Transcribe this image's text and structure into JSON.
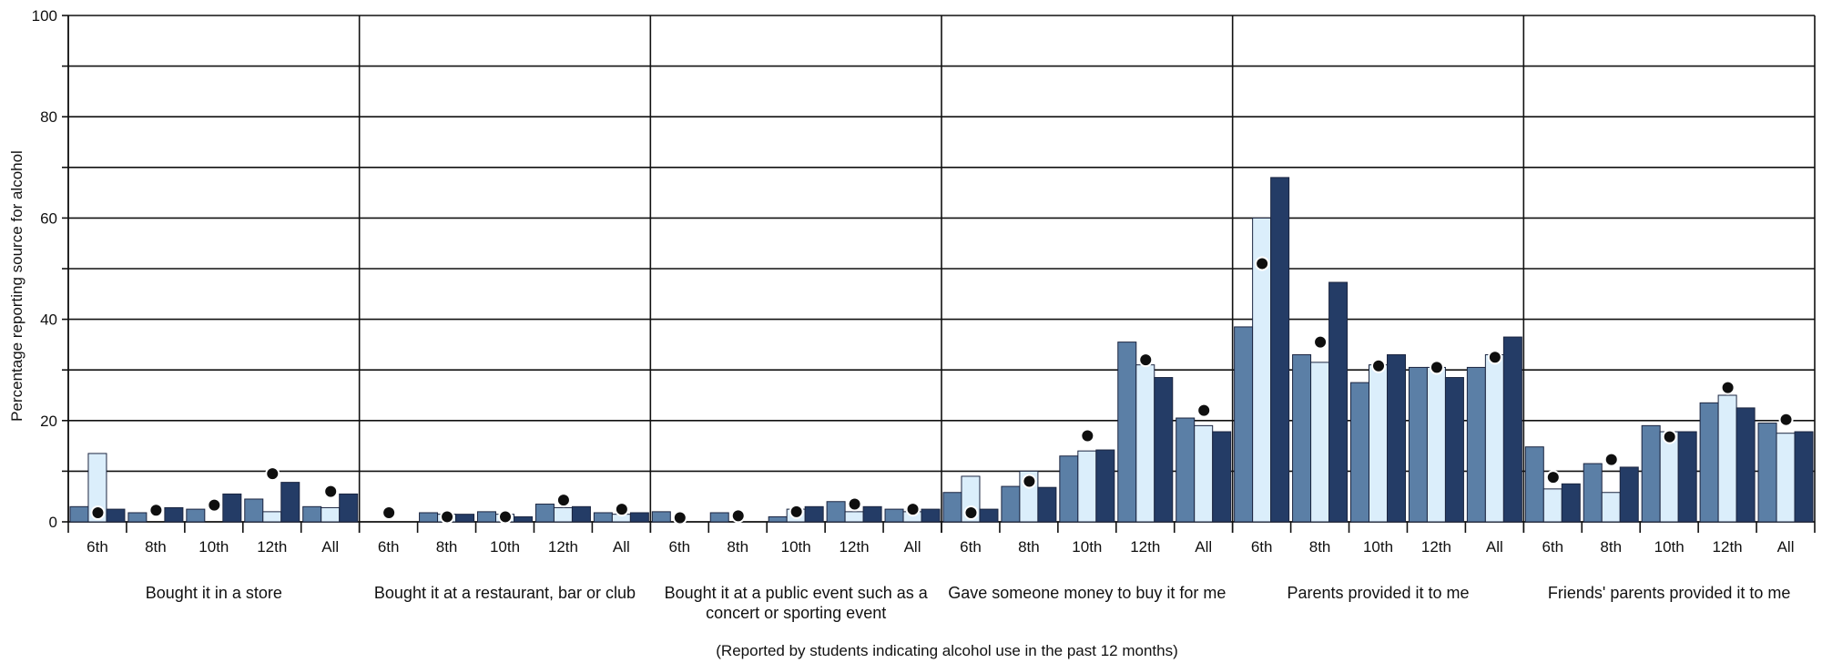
{
  "chart_data": {
    "type": "bar",
    "ylabel": "Percentage reporting source for alcohol",
    "xlabel": "(Reported by students indicating alcohol use in the past 12 months)",
    "ylim": [
      0,
      100
    ],
    "yticks": [
      0,
      20,
      40,
      60,
      80,
      100
    ],
    "grid": true,
    "categories": [
      "6th",
      "8th",
      "10th",
      "12th",
      "All"
    ],
    "colors": [
      "#5b7fa6",
      "#dbeefb",
      "#243c66"
    ],
    "groups": [
      {
        "label": "Bought it in a store",
        "bars": [
          [
            3.0,
            13.5,
            2.5
          ],
          [
            1.8,
            0.0,
            2.8
          ],
          [
            2.5,
            0.0,
            5.5
          ],
          [
            4.5,
            2.0,
            7.8
          ],
          [
            3.0,
            2.8,
            5.5
          ]
        ],
        "dots": [
          1.8,
          2.3,
          3.3,
          9.5,
          6.0
        ]
      },
      {
        "label": "Bought it at a restaurant, bar or club",
        "bars": [
          [
            0.0,
            0.0,
            0.0
          ],
          [
            1.8,
            1.5,
            1.5
          ],
          [
            2.0,
            1.5,
            1.0
          ],
          [
            3.5,
            2.8,
            3.0
          ],
          [
            1.8,
            1.5,
            1.8
          ]
        ],
        "dots": [
          1.8,
          1.0,
          1.0,
          4.3,
          2.5
        ]
      },
      {
        "label": "Bought it at a public event such as a concert or sporting event",
        "label_lines": [
          "Bought it at a public event such as a",
          "concert or sporting event"
        ],
        "bars": [
          [
            2.0,
            0.0,
            0.0
          ],
          [
            1.8,
            0.0,
            0.0
          ],
          [
            1.0,
            2.5,
            3.0
          ],
          [
            4.0,
            2.0,
            3.0
          ],
          [
            2.5,
            2.0,
            2.5
          ]
        ],
        "dots": [
          0.8,
          1.2,
          2.0,
          3.5,
          2.5
        ]
      },
      {
        "label": "Gave someone money to buy it for me",
        "bars": [
          [
            5.8,
            9.0,
            2.5
          ],
          [
            7.0,
            10.0,
            6.8
          ],
          [
            13.0,
            14.0,
            14.2
          ],
          [
            35.5,
            31.0,
            28.5
          ],
          [
            20.5,
            19.0,
            17.8
          ]
        ],
        "dots": [
          1.8,
          8.0,
          17.0,
          32.0,
          22.0
        ]
      },
      {
        "label": "Parents provided it to me",
        "bars": [
          [
            38.5,
            60.0,
            68.0
          ],
          [
            33.0,
            31.5,
            47.3
          ],
          [
            27.5,
            31.0,
            33.0
          ],
          [
            30.5,
            30.5,
            28.5
          ],
          [
            30.5,
            33.0,
            36.5
          ]
        ],
        "dots": [
          51.0,
          35.5,
          30.8,
          30.5,
          32.5
        ]
      },
      {
        "label": "Friends' parents provided it to me",
        "bars": [
          [
            14.8,
            6.5,
            7.5
          ],
          [
            11.5,
            5.8,
            10.8
          ],
          [
            19.0,
            17.8,
            17.8
          ],
          [
            23.5,
            25.0,
            22.5
          ],
          [
            19.5,
            17.5,
            17.8
          ]
        ],
        "dots": [
          8.8,
          12.3,
          16.8,
          26.5,
          20.2
        ]
      }
    ]
  }
}
